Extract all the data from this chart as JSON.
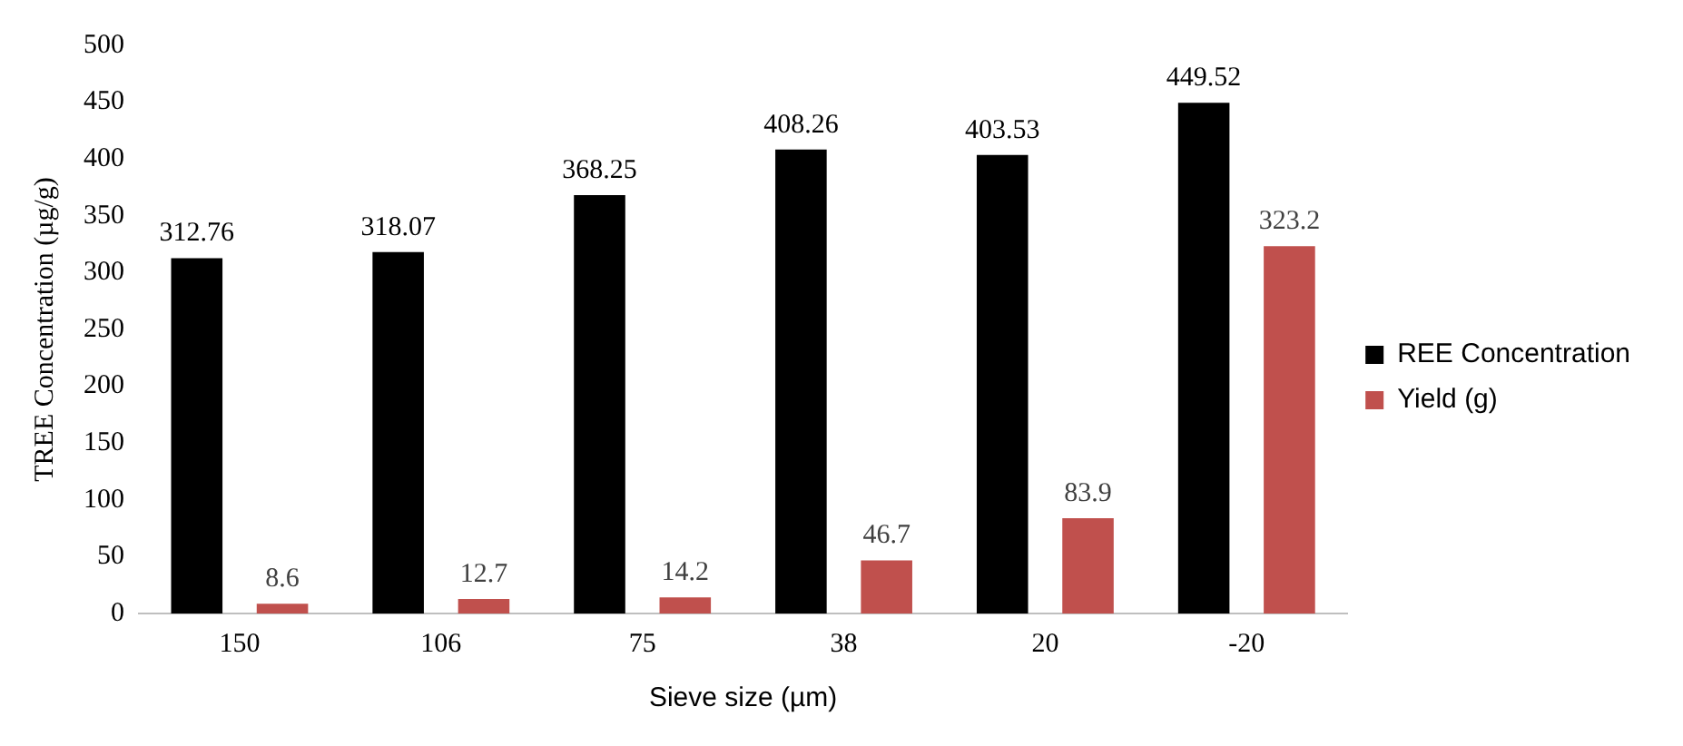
{
  "chart_data": {
    "type": "bar",
    "xlabel": "Sieve size (µm)",
    "ylabel": "TREE Concentration (µg/g)",
    "categories": [
      "150",
      "106",
      "75",
      "38",
      "20",
      "-20"
    ],
    "series": [
      {
        "name": "REE Concentration",
        "color": "#000000",
        "values": [
          312.76,
          318.07,
          368.25,
          408.26,
          403.53,
          449.52
        ]
      },
      {
        "name": "Yield (g)",
        "color": "#c0504d",
        "values": [
          8.6,
          12.7,
          14.2,
          46.7,
          83.9,
          323.2
        ]
      }
    ],
    "ylim": [
      0,
      500
    ],
    "yticks": [
      0,
      50,
      100,
      150,
      200,
      250,
      300,
      350,
      400,
      450,
      500
    ],
    "grid": false,
    "legend": "right",
    "data_labels": true
  }
}
